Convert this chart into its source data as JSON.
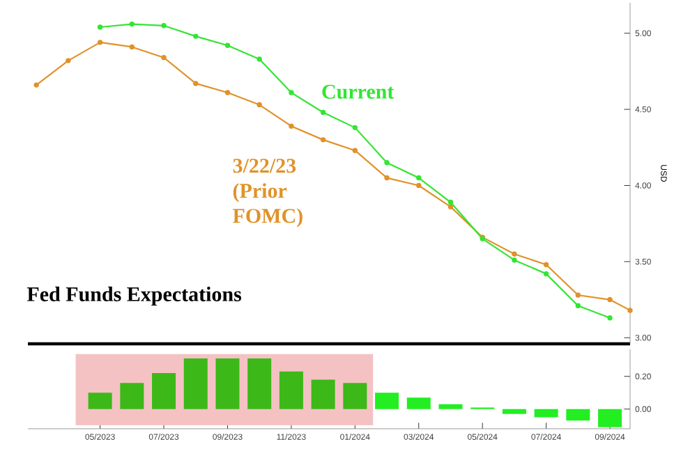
{
  "chart_data": [
    {
      "type": "line",
      "title": "Fed Funds Expectations",
      "ylabel": "USD",
      "marker": "circle",
      "line_style": "solid",
      "legend": false,
      "grid": false,
      "tick_labels": "y",
      "xlim": [
        "2023-02-23",
        "2024-09-20"
      ],
      "ylim": [
        2.96,
        5.2
      ],
      "yticks": [
        {
          "value": 3,
          "label": "3.00"
        },
        {
          "value": 3.5,
          "label": "3.50"
        },
        {
          "value": 4,
          "label": "4.00"
        },
        {
          "value": 4.5,
          "label": "4.50"
        },
        {
          "value": 5,
          "label": "5.00"
        }
      ],
      "series": [
        {
          "name": "Current",
          "color": "#33e533",
          "x": [
            "2023-05",
            "2023-06",
            "2023-07",
            "2023-08",
            "2023-09",
            "2023-10",
            "2023-11",
            "2023-12",
            "2024-01",
            "2024-02",
            "2024-03",
            "2024-04",
            "2024-05",
            "2024-06",
            "2024-07",
            "2024-08",
            "2024-09"
          ],
          "values": [
            5.04,
            5.06,
            5.05,
            4.98,
            4.92,
            4.83,
            4.61,
            4.48,
            4.38,
            4.15,
            4.05,
            3.89,
            3.65,
            3.51,
            3.42,
            3.21,
            3.13
          ]
        },
        {
          "name": "3/22/23 (Prior FOMC)",
          "color": "#e0922a",
          "x": [
            "2023-03",
            "2023-04",
            "2023-05",
            "2023-06",
            "2023-07",
            "2023-08",
            "2023-09",
            "2023-10",
            "2023-11",
            "2023-12",
            "2024-01",
            "2024-02",
            "2024-03",
            "2024-04",
            "2024-05",
            "2024-06",
            "2024-07",
            "2024-08",
            "2024-09",
            "2024-09-20"
          ],
          "values": [
            4.66,
            4.82,
            4.94,
            4.91,
            4.84,
            4.67,
            4.61,
            4.53,
            4.39,
            4.3,
            4.23,
            4.05,
            4.0,
            3.86,
            3.66,
            3.55,
            3.48,
            3.28,
            3.25,
            3.18
          ]
        }
      ]
    },
    {
      "type": "bar",
      "tick_labels": true,
      "grid": false,
      "legend": false,
      "xlim": [
        "2023-02-23",
        "2024-09-20"
      ],
      "ylim": [
        -0.12,
        0.365
      ],
      "x": [
        "2023-05",
        "2023-06",
        "2023-07",
        "2023-08",
        "2023-09",
        "2023-10",
        "2023-11",
        "2023-12",
        "2024-01",
        "2024-02",
        "2024-03",
        "2024-04",
        "2024-05",
        "2024-06",
        "2024-07",
        "2024-08",
        "2024-09"
      ],
      "values": [
        0.1,
        0.16,
        0.22,
        0.31,
        0.31,
        0.31,
        0.23,
        0.18,
        0.16,
        0.1,
        0.07,
        0.03,
        0.01,
        -0.03,
        -0.05,
        -0.07,
        -0.11
      ],
      "colors": [
        "#3cb818",
        "#3cb818",
        "#3cb818",
        "#3cb818",
        "#3cb818",
        "#3cb818",
        "#3cb818",
        "#3cb818",
        "#3cb818",
        "#22ee22",
        "#22ee22",
        "#22ee22",
        "#22ee22",
        "#22ee22",
        "#22ee22",
        "#22ee22",
        "#22ee22"
      ],
      "xticks": [
        {
          "value": "2023-05",
          "label": "05/2023"
        },
        {
          "value": "2023-07",
          "label": "07/2023"
        },
        {
          "value": "2023-09",
          "label": "09/2023"
        },
        {
          "value": "2023-11",
          "label": "11/2023"
        },
        {
          "value": "2024-01",
          "label": "01/2024"
        },
        {
          "value": "2024-03",
          "label": "03/2024"
        },
        {
          "value": "2024-05",
          "label": "05/2024"
        },
        {
          "value": "2024-07",
          "label": "07/2024"
        },
        {
          "value": "2024-09",
          "label": "09/2024"
        }
      ],
      "yticks": [
        {
          "value": 0,
          "label": "0.00"
        },
        {
          "value": 0.2,
          "label": "0.20"
        }
      ],
      "bands": [
        {
          "axis": "x",
          "from": "2023-04-08",
          "to": "2024-01-18",
          "color": "#f4c2c2"
        }
      ]
    }
  ]
}
